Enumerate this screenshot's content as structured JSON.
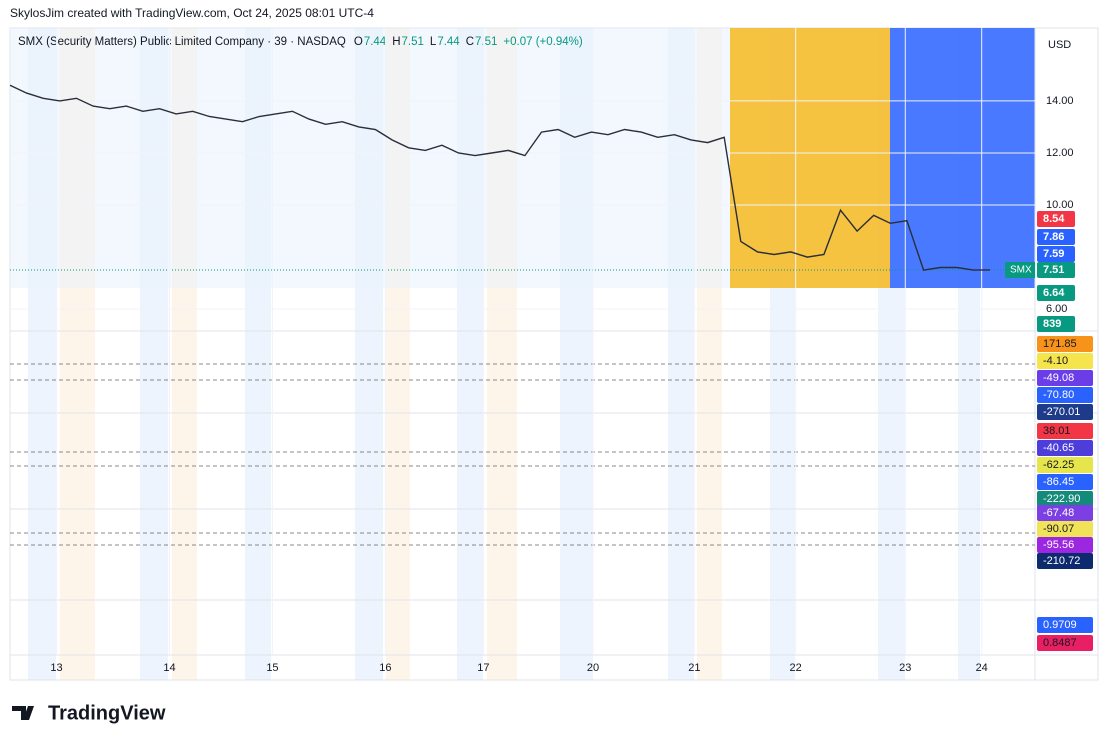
{
  "header": {
    "byline": "SkylosJim created with TradingView.com, Oct 24, 2025 08:01 UTC-4",
    "symbol": "SMX (Security Matters) Public Limited Company · 39 · NASDAQ",
    "ohlc": [
      {
        "key": "O",
        "value": "7.44"
      },
      {
        "key": "H",
        "value": "7.51"
      },
      {
        "key": "L",
        "value": "7.44"
      },
      {
        "key": "C",
        "value": "7.51"
      }
    ],
    "change": "+0.07 (+0.94%)"
  },
  "currency": "USD",
  "chart_data": {
    "type": "line",
    "series": [
      {
        "name": "SMX",
        "color": "#2a2e39",
        "values": [
          14.6,
          14.3,
          14.1,
          14.0,
          14.1,
          13.8,
          13.7,
          13.8,
          13.6,
          13.7,
          13.5,
          13.6,
          13.4,
          13.3,
          13.2,
          13.4,
          13.5,
          13.6,
          13.3,
          13.1,
          13.2,
          13.0,
          12.9,
          12.5,
          12.2,
          12.1,
          12.3,
          12.0,
          11.9,
          12.0,
          12.1,
          11.9,
          12.8,
          12.9,
          12.6,
          12.8,
          12.7,
          12.9,
          12.8,
          12.6,
          12.7,
          12.5,
          12.4,
          12.6,
          8.6,
          8.2,
          8.1,
          8.2,
          8.0,
          8.1,
          9.8,
          9.0,
          9.6,
          9.3,
          9.4,
          7.5,
          7.6,
          7.6,
          7.5,
          7.51
        ]
      }
    ],
    "xlim": [
      0,
      59
    ],
    "xticks": [
      {
        "value": 2.8,
        "label": "13"
      },
      {
        "value": 9.6,
        "label": "14"
      },
      {
        "value": 15.8,
        "label": "15"
      },
      {
        "value": 22.6,
        "label": "16"
      },
      {
        "value": 28.5,
        "label": "17"
      },
      {
        "value": 35.1,
        "label": "20"
      },
      {
        "value": 41.2,
        "label": "21"
      },
      {
        "value": 47.3,
        "label": "22"
      },
      {
        "value": 53.9,
        "label": "23"
      },
      {
        "value": 58.5,
        "label": "24"
      }
    ],
    "ylim": [
      5.2,
      16.8
    ],
    "yticks": [
      {
        "value": 6,
        "label": "6.00"
      },
      {
        "value": 10,
        "label": "10.00"
      },
      {
        "value": 12,
        "label": "12.00"
      },
      {
        "value": 14,
        "label": "14.00"
      }
    ],
    "grid": true
  },
  "price_labels": [
    {
      "text": "8.54",
      "color": "#f23645"
    },
    {
      "text": "7.86",
      "color": "#2962ff"
    },
    {
      "text": "7.59",
      "color": "#2962ff"
    },
    {
      "text": "7.51",
      "color": "#089981"
    },
    {
      "text": "6.64",
      "color": "#089981"
    },
    {
      "text": "839",
      "color": "#089981"
    }
  ],
  "panes": [
    {
      "labels": [
        {
          "text": "171.85",
          "color": "#f7931a"
        },
        {
          "text": "-4.10",
          "color": "#f5e44c"
        },
        {
          "text": "-49.08",
          "color": "#6a3de8"
        },
        {
          "text": "-70.80",
          "color": "#2962ff"
        },
        {
          "text": "-270.01",
          "color": "#1e3a8a"
        }
      ]
    },
    {
      "labels": [
        {
          "text": "38.01",
          "color": "#f23645"
        },
        {
          "text": "-40.65",
          "color": "#4d3ddb"
        },
        {
          "text": "-62.25",
          "color": "#e6e64c"
        },
        {
          "text": "-86.45",
          "color": "#2962ff"
        },
        {
          "text": "-222.90",
          "color": "#138a7a"
        }
      ]
    },
    {
      "labels": [
        {
          "text": "-67.48",
          "color": "#7b3fe4"
        },
        {
          "text": "-90.07",
          "color": "#f0e35a"
        },
        {
          "text": "-95.56",
          "color": "#9c27e0"
        },
        {
          "text": "-210.72",
          "color": "#0d2a6e"
        }
      ]
    },
    {
      "labels": [
        {
          "text": "0.9709",
          "color": "#2962ff"
        },
        {
          "text": "0.8487",
          "color": "#e91e63"
        }
      ]
    }
  ],
  "brand": "TradingView"
}
